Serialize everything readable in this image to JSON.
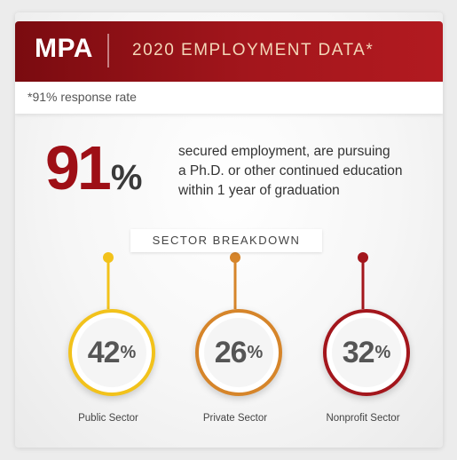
{
  "header": {
    "title": "MPA",
    "subtitle": "2020 EMPLOYMENT DATA*"
  },
  "note": "*91% response rate",
  "headline": {
    "number": "91",
    "percent": "%",
    "statement_lines": [
      "secured employment, are pursuing",
      "a Ph.D. or other continued education",
      "within 1 year of graduation"
    ]
  },
  "breakdown_label": "SECTOR BREAKDOWN",
  "sectors": [
    {
      "value": "42",
      "percent": "%",
      "label": "Public Sector",
      "color": "#f2c21b"
    },
    {
      "value": "26",
      "percent": "%",
      "label": "Private Sector",
      "color": "#d6852a"
    },
    {
      "value": "32",
      "percent": "%",
      "label": "Nonprofit Sector",
      "color": "#a3161c"
    }
  ],
  "colors": {
    "accent": "#a3161c",
    "connector_gradient": [
      "#f2c21b",
      "#d6852a",
      "#a3161c"
    ]
  }
}
